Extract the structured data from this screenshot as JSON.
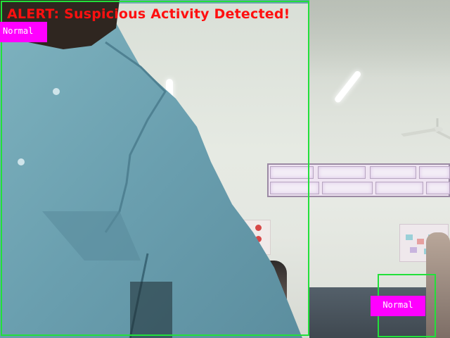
{
  "window": {
    "alert_text": "ALERT: Suspicious Activity Detected!"
  },
  "detections": [
    {
      "label": "Normal",
      "box_color": "#22e03a",
      "label_bg": "#ff00ff"
    },
    {
      "label": "Normal",
      "box_color": "#22e03a",
      "label_bg": "#ff00ff"
    }
  ],
  "colors": {
    "alert": "#ff1010",
    "box": "#22e03a",
    "label_bg": "#ff00ff",
    "label_text": "#ffffff"
  }
}
